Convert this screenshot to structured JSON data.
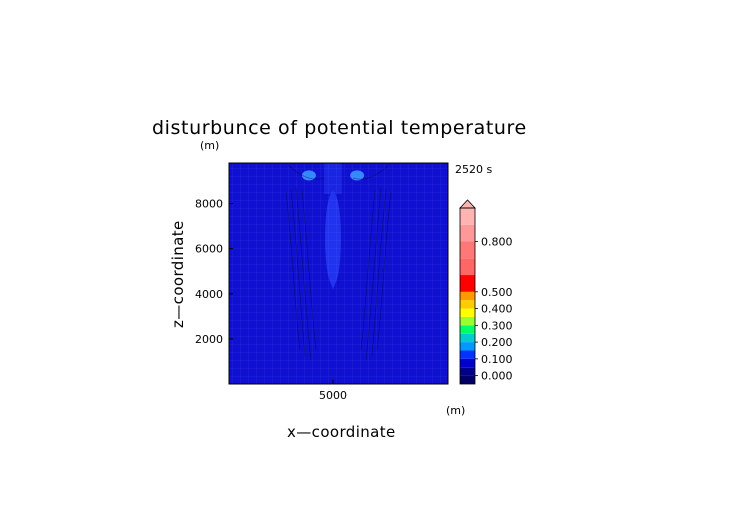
{
  "chart_data": {
    "type": "heatmap",
    "title": "disturbunce of potential temperature",
    "time_label": "2520 s",
    "xlabel": "x—coordinate",
    "ylabel": "z—coordinate",
    "x_unit": "(m)",
    "y_unit": "(m)",
    "xlim": [
      1200,
      9200
    ],
    "ylim": [
      0,
      9800
    ],
    "x_ticks": [
      5000
    ],
    "y_ticks": [
      2000,
      4000,
      6000,
      8000
    ],
    "x_tick_labels": [
      "5000"
    ],
    "y_tick_labels": [
      "2000",
      "4000",
      "6000",
      "8000"
    ],
    "colorbar": {
      "levels": [
        -0.05,
        0.0,
        0.05,
        0.1,
        0.15,
        0.2,
        0.25,
        0.3,
        0.35,
        0.4,
        0.45,
        0.5,
        0.6,
        0.7,
        0.8,
        0.9,
        1.0
      ],
      "colors": [
        "#000066",
        "#00008b",
        "#0000cd",
        "#0033ff",
        "#0099ff",
        "#00cccc",
        "#00ff66",
        "#99ff33",
        "#ffff00",
        "#ffcc00",
        "#ff9900",
        "#ff0000",
        "#ff6666",
        "#ff7777",
        "#ff9999",
        "#ffb3b3"
      ],
      "extend": "max",
      "tick_values": [
        0.0,
        0.1,
        0.2,
        0.3,
        0.4,
        0.5,
        0.8
      ],
      "tick_labels": [
        "0.000",
        "0.100",
        "0.200",
        "0.300",
        "0.400",
        "0.500",
        "0.800"
      ]
    },
    "field": {
      "background": "#1010d0",
      "features": [
        {
          "kind": "plume",
          "x_center": 5000,
          "z_bottom": 4200,
          "z_top": 8600,
          "half_width": 360,
          "color": "#2233ee"
        },
        {
          "kind": "blob",
          "x_center": 4120,
          "z_center": 9250,
          "color": "#3388ff"
        },
        {
          "kind": "blob",
          "x_center": 5880,
          "z_center": 9250,
          "color": "#3388ff"
        }
      ]
    }
  }
}
